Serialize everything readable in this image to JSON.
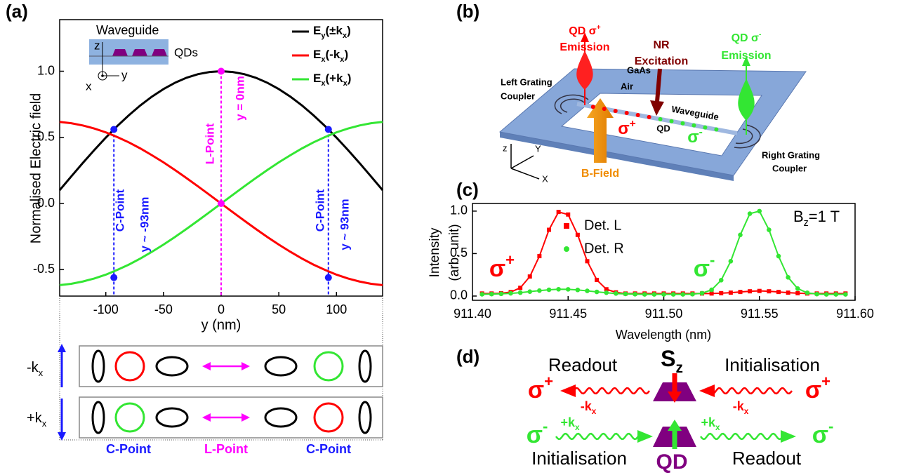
{
  "panel_labels": [
    "(a)",
    "(b)",
    "(c)",
    "(d)"
  ],
  "chart_data": [
    {
      "type": "line",
      "xlabel": "y (nm)",
      "ylabel": "Normalised Electric field",
      "x": [
        -140,
        -130,
        -120,
        -110,
        -100,
        -90,
        -80,
        -70,
        -60,
        -50,
        -40,
        -30,
        -20,
        -10,
        0,
        10,
        20,
        30,
        40,
        50,
        60,
        70,
        80,
        90,
        100,
        110,
        120,
        130,
        140
      ],
      "series": [
        {
          "name": "Ey(±kx)",
          "color": "#000000",
          "values": [
            0.101,
            0.204,
            0.306,
            0.404,
            0.498,
            0.586,
            0.667,
            0.742,
            0.808,
            0.865,
            0.913,
            0.951,
            0.978,
            0.994,
            1,
            0.994,
            0.978,
            0.951,
            0.913,
            0.865,
            0.808,
            0.742,
            0.667,
            0.586,
            0.498,
            0.404,
            0.306,
            0.204,
            0.101
          ]
        },
        {
          "name": "Ex(-kx)",
          "color": "#ff0000",
          "values": [
            0.617,
            0.607,
            0.59,
            0.567,
            0.538,
            0.502,
            0.462,
            0.416,
            0.365,
            0.311,
            0.253,
            0.192,
            0.129,
            0.065,
            0,
            -0.065,
            -0.129,
            -0.192,
            -0.253,
            -0.311,
            -0.365,
            -0.416,
            -0.462,
            -0.502,
            -0.538,
            -0.567,
            -0.59,
            -0.607,
            -0.617
          ]
        },
        {
          "name": "Ex(+kx)",
          "color": "#33e633",
          "values": [
            -0.617,
            -0.607,
            -0.59,
            -0.567,
            -0.538,
            -0.502,
            -0.462,
            -0.416,
            -0.365,
            -0.311,
            -0.253,
            -0.192,
            -0.129,
            -0.065,
            0,
            0.065,
            0.129,
            0.192,
            0.253,
            0.311,
            0.365,
            0.416,
            0.462,
            0.502,
            0.538,
            0.567,
            0.59,
            0.607,
            0.617
          ]
        }
      ],
      "points": {
        "x": [
          -93,
          -93,
          0,
          0,
          93,
          93
        ],
        "y": [
          0.56,
          -0.56,
          1,
          0,
          0.56,
          -0.56
        ],
        "colors": [
          "#1a1aff",
          "#1a1aff",
          "#ff00ff",
          "#ff00ff",
          "#1a1aff",
          "#1a1aff"
        ]
      },
      "annotations": [
        "C-Point",
        "y ~ -93nm",
        "L-Point",
        "y = 0nm",
        "C-Point",
        "y ~ 93nm"
      ],
      "xlim": [
        -140,
        140
      ],
      "xticks": [
        -100,
        -50,
        0,
        50,
        100
      ],
      "ylim": [
        -0.7,
        1.39
      ],
      "yticks": [
        -0.5,
        {
          "value": 0,
          "label": "0.0"
        },
        0.5,
        {
          "value": 1,
          "label": "1.0"
        }
      ],
      "legend": "upper right"
    },
    {
      "type": "scatter",
      "xlabel": "Wavelength (nm)",
      "ylabel": [
        "Intensity",
        "(arb. unit)"
      ],
      "annotations": [
        "Bz=1 T",
        "σ+",
        "σ-"
      ],
      "x": [
        911.405,
        911.41,
        911.415,
        911.42,
        911.425,
        911.43,
        911.435,
        911.44,
        911.445,
        911.45,
        911.455,
        911.46,
        911.465,
        911.47,
        911.475,
        911.48,
        911.485,
        911.49,
        911.495,
        911.5,
        911.505,
        911.51,
        911.515,
        911.52,
        911.525,
        911.53,
        911.535,
        911.54,
        911.545,
        911.55,
        911.555,
        911.56,
        911.565,
        911.57,
        911.575,
        911.58,
        911.585,
        911.59,
        911.595
      ],
      "series": [
        {
          "name": "Det. L",
          "color": "#ff0000",
          "marker": "square",
          "values": [
            0.03,
            0.03,
            0.033,
            0.047,
            0.097,
            0.23,
            0.47,
            0.78,
            0.99,
            0.96,
            0.72,
            0.41,
            0.19,
            0.08,
            0.043,
            0.03,
            0.03,
            0.03,
            0.03,
            0.03,
            0.03,
            0.03,
            0.03,
            0.03,
            0.03,
            0.034,
            0.04,
            0.048,
            0.056,
            0.06,
            0.056,
            0.048,
            0.04,
            0.034,
            0.03,
            0.03,
            0.03,
            0.03,
            0.03
          ]
        },
        {
          "name": "Det. R",
          "color": "#33e633",
          "marker": "circle",
          "values": [
            0.021,
            0.023,
            0.026,
            0.032,
            0.04,
            0.052,
            0.064,
            0.074,
            0.08,
            0.079,
            0.072,
            0.061,
            0.049,
            0.039,
            0.03,
            0.025,
            0.022,
            0.02,
            0.02,
            0.02,
            0.02,
            0.02,
            0.022,
            0.033,
            0.073,
            0.187,
            0.41,
            0.72,
            0.97,
            1.0,
            0.78,
            0.47,
            0.22,
            0.088,
            0.038,
            0.023,
            0.02,
            0.02,
            0.02
          ]
        }
      ],
      "xlim": [
        911.4,
        911.6
      ],
      "xticks": [
        {
          "value": 911.4,
          "label": "911.40"
        },
        {
          "value": 911.45,
          "label": "911.45"
        },
        {
          "value": 911.5,
          "label": "911.50"
        },
        {
          "value": 911.55,
          "label": "911.55"
        },
        {
          "value": 911.6,
          "label": "911.60"
        }
      ],
      "ylim": [
        -0.05,
        1.09
      ],
      "yticks": [
        {
          "value": 0,
          "label": "0.0"
        },
        0.5,
        {
          "value": 1,
          "label": "1.0"
        }
      ],
      "legend": "upper center"
    }
  ],
  "inset_a": {
    "title": "Waveguide",
    "label": "QDs",
    "axes": [
      "z",
      "x",
      "y"
    ]
  },
  "schematic_a": {
    "rows": [
      "-kx",
      "+kx"
    ],
    "labels": [
      "C-Point",
      "L-Point",
      "C-Point"
    ]
  },
  "diagram_b": {
    "labels": [
      "QD σ+",
      "Emission",
      "NR",
      "Excitation",
      "QD σ-",
      "Emission",
      "Left Grating",
      "Coupler",
      "GaAs",
      "Air",
      "Waveguide",
      "σ+",
      "QD",
      "σ-",
      "Right Grating",
      "Coupler",
      "B-Field",
      "z",
      "Y",
      "X"
    ]
  },
  "diagram_d": {
    "labels": [
      "Readout",
      "Sz",
      "Initialisation",
      "σ+",
      "-kx",
      "-kx",
      "σ+",
      "σ-",
      "+kx",
      "+kx",
      "σ-",
      "Initialisation",
      "QD",
      "Readout"
    ]
  }
}
